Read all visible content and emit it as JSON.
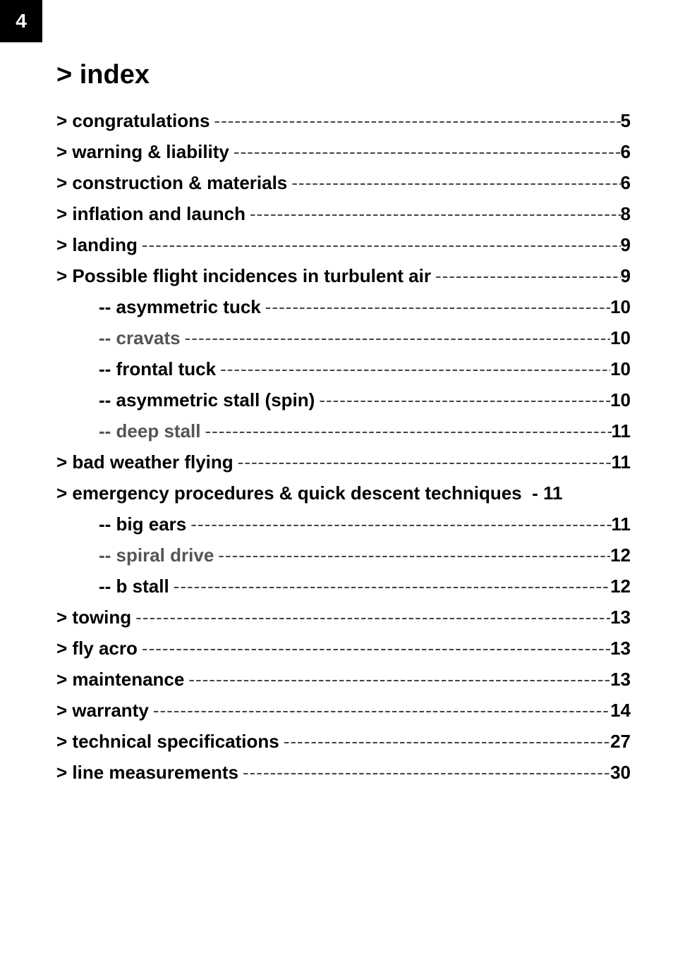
{
  "page_number": "4",
  "title": "> index",
  "toc": [
    {
      "label": "> congratulations",
      "page": "5",
      "indent": false
    },
    {
      "label": "> warning & liability",
      "page": "6",
      "indent": false
    },
    {
      "label": "> construction & materials",
      "page": "6",
      "indent": false
    },
    {
      "label": "> inflation and launch",
      "page": "8",
      "indent": false
    },
    {
      "label": "> landing",
      "page": "9",
      "indent": false
    },
    {
      "label": "> Possible flight incidences in turbulent air",
      "page": "9",
      "indent": false
    },
    {
      "label": "-- asymmetric tuck",
      "page": "10",
      "indent": true
    },
    {
      "label": "-- cravats",
      "page": "10",
      "indent": true,
      "light": true
    },
    {
      "label": "-- frontal tuck",
      "page": "10",
      "indent": true
    },
    {
      "label": "-- asymmetric stall (spin)",
      "page": "10",
      "indent": true
    },
    {
      "label": "-- deep stall",
      "page": "11",
      "indent": true,
      "light": true
    },
    {
      "label": "> bad weather flying",
      "page": "11",
      "indent": false
    },
    {
      "label": "> emergency procedures & quick descent techniques",
      "page": "- 11",
      "indent": false,
      "nodash": true
    },
    {
      "label": "-- big ears",
      "page": "11",
      "indent": true
    },
    {
      "label": "-- spiral drive",
      "page": "12",
      "indent": true,
      "light": true
    },
    {
      "label": "-- b stall",
      "page": "12",
      "indent": true
    },
    {
      "label": "> towing",
      "page": "13",
      "indent": false
    },
    {
      "label": "> fly acro",
      "page": "13",
      "indent": false
    },
    {
      "label": "> maintenance",
      "page": "13",
      "indent": false
    },
    {
      "label": "> warranty",
      "page": "14",
      "indent": false
    },
    {
      "label": "> technical specifications",
      "page": "27",
      "indent": false
    },
    {
      "label": "> line measurements",
      "page": "30",
      "indent": false
    }
  ],
  "dash_fill": "-------------------------------------------------------------------------------------------------------"
}
